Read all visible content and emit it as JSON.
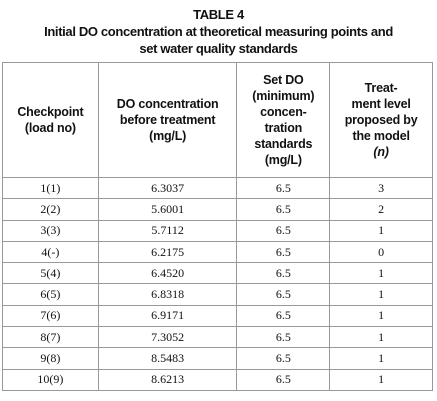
{
  "header": {
    "title": "TABLE 4",
    "caption": [
      "Initial DO concentration at theoretical measuring points and",
      "set water quality standards"
    ]
  },
  "table": {
    "columns": [
      [
        "Checkpoint",
        "(load no)"
      ],
      [
        "DO concentration",
        "before treatment",
        "(mg/L)"
      ],
      [
        "Set DO",
        "(minimum)",
        "concen-",
        "tration",
        "standards",
        "(mg/L)"
      ],
      [
        "Treat-",
        "ment level",
        "proposed by",
        "the model",
        "(n)"
      ]
    ],
    "rows": [
      [
        "1(1)",
        "6.3037",
        "6.5",
        "3"
      ],
      [
        "2(2)",
        "5.6001",
        "6.5",
        "2"
      ],
      [
        "3(3)",
        "5.7112",
        "6.5",
        "1"
      ],
      [
        "4(-)",
        "6.2175",
        "6.5",
        "0"
      ],
      [
        "5(4)",
        "6.4520",
        "6.5",
        "1"
      ],
      [
        "6(5)",
        "6.8318",
        "6.5",
        "1"
      ],
      [
        "7(6)",
        "6.9171",
        "6.5",
        "1"
      ],
      [
        "8(7)",
        "7.3052",
        "6.5",
        "1"
      ],
      [
        "9(8)",
        "8.5483",
        "6.5",
        "1"
      ],
      [
        "10(9)",
        "8.6213",
        "6.5",
        "1"
      ]
    ]
  }
}
